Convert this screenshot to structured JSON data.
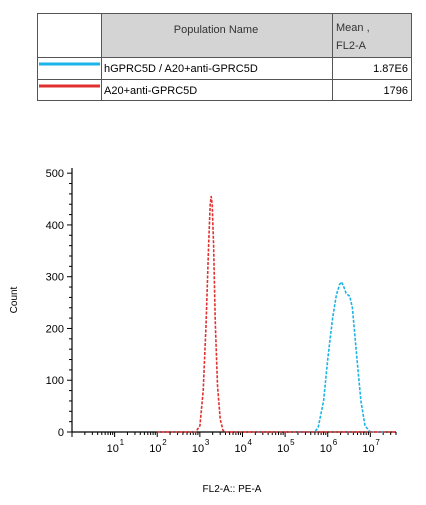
{
  "legend_table": {
    "headers": {
      "name": "Population Name",
      "mean_line1": "Mean ,",
      "mean_line2": "FL2-A"
    },
    "rows": [
      {
        "name": "hGPRC5D / A20+anti-GPRC5D",
        "mean": "1.87E6",
        "color": "#1ab4e8"
      },
      {
        "name": "A20+anti-GPRC5D",
        "mean": "1796",
        "color": "#e03030"
      }
    ]
  },
  "chart_data": {
    "type": "line",
    "xlabel": "FL2-A:: PE-A",
    "ylabel": "Count",
    "x_scale": "log",
    "xlim": [
      1,
      40000000
    ],
    "ylim": [
      0,
      510
    ],
    "y_ticks": [
      0,
      100,
      200,
      300,
      400,
      500
    ],
    "x_ticks": [
      {
        "value": 10,
        "base": "10",
        "exp": "1"
      },
      {
        "value": 100,
        "base": "10",
        "exp": "2"
      },
      {
        "value": 1000,
        "base": "10",
        "exp": "3"
      },
      {
        "value": 10000,
        "base": "10",
        "exp": "4"
      },
      {
        "value": 100000,
        "base": "10",
        "exp": "5"
      },
      {
        "value": 1000000,
        "base": "10",
        "exp": "6"
      },
      {
        "value": 10000000,
        "base": "10",
        "exp": "7"
      }
    ],
    "series": [
      {
        "name": "hGPRC5D / A20+anti-GPRC5D",
        "color": "#1ab4e8",
        "x": [
          200000,
          500000,
          600000,
          800000,
          1000000,
          1300000,
          1600000,
          1900000,
          2100000,
          2400000,
          2700000,
          3300000,
          3800000,
          4300000,
          5000000,
          6000000,
          7500000,
          10000000,
          20000000
        ],
        "y": [
          0,
          0,
          10,
          60,
          140,
          220,
          265,
          285,
          290,
          280,
          268,
          262,
          240,
          190,
          130,
          60,
          12,
          0,
          0
        ]
      },
      {
        "name": "A20+anti-GPRC5D",
        "color": "#e03030",
        "x": [
          100,
          800,
          1000,
          1200,
          1400,
          1600,
          1750,
          1850,
          1950,
          2100,
          2300,
          2600,
          3000,
          3500,
          4000,
          100000000
        ],
        "y": [
          0,
          0,
          12,
          80,
          210,
          360,
          440,
          455,
          440,
          360,
          210,
          90,
          25,
          3,
          0,
          0
        ]
      }
    ]
  }
}
